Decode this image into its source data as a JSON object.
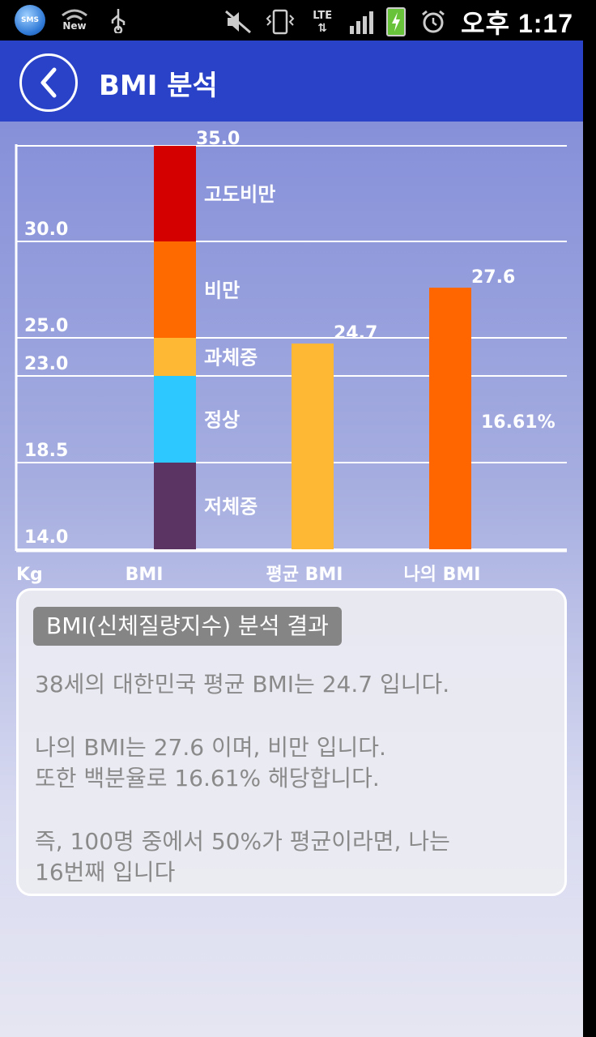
{
  "status_bar": {
    "sms_icon_label": "SMS",
    "wifi_label": "New",
    "network_label": "LTE",
    "time": "오후 1:17",
    "icons": [
      "sms-icon",
      "wifi-icon",
      "usb-icon",
      "mute-icon",
      "vibrate-icon",
      "lte-icon",
      "signal-icon",
      "battery-icon",
      "alarm-icon"
    ]
  },
  "header": {
    "title": "BMI 분석",
    "back_icon": "chevron-left-icon"
  },
  "chart_data": {
    "type": "bar",
    "ylim": [
      14.0,
      35.0
    ],
    "y_ticks": [
      "35.0",
      "30.0",
      "25.0",
      "23.0",
      "18.5",
      "14.0"
    ],
    "y_tick_values": [
      35.0,
      30.0,
      25.0,
      23.0,
      18.5,
      14.0
    ],
    "xlabel": "Kg",
    "categories": [
      "BMI",
      "평균 BMI",
      "나의 BMI"
    ],
    "bands": [
      {
        "name": "저체중",
        "from": 14.0,
        "to": 18.5,
        "color": "#5c3463"
      },
      {
        "name": "정상",
        "from": 18.5,
        "to": 23.0,
        "color": "#2dc8ff"
      },
      {
        "name": "과체중",
        "from": 23.0,
        "to": 25.0,
        "color": "#ffb834"
      },
      {
        "name": "비만",
        "from": 25.0,
        "to": 30.0,
        "color": "#ff6a00"
      },
      {
        "name": "고도비만",
        "from": 30.0,
        "to": 35.0,
        "color": "#d40000"
      }
    ],
    "bars": [
      {
        "name": "평균 BMI",
        "value": 24.7,
        "label": "24.7",
        "color": "#ffb834"
      },
      {
        "name": "나의 BMI",
        "value": 27.6,
        "label": "27.6",
        "color": "#ff6600",
        "percent_label": "16.61%"
      }
    ],
    "grid": true
  },
  "result": {
    "title": "BMI(신체질량지수) 분석 결과",
    "line1": "38세의 대한민국 평균 BMI는 24.7 입니다.",
    "line2": "나의 BMI는 27.6 이며, 비만 입니다.",
    "line3": "또한 백분율로 16.61% 해당합니다.",
    "line4": "즉, 100명 중에서 50%가 평균이라면, 나는",
    "line5": "16번째 입니다"
  }
}
